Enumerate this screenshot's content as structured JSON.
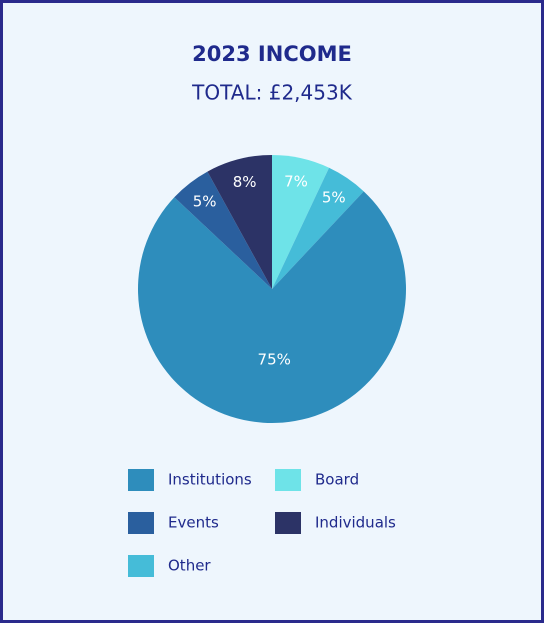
{
  "chart_data": {
    "type": "pie",
    "title": "2023 INCOME",
    "subtitle": "TOTAL: £2,453K",
    "categories": [
      "Board",
      "Other",
      "Institutions",
      "Events",
      "Individuals"
    ],
    "values": [
      7,
      5,
      75,
      5,
      8
    ],
    "value_labels": [
      "7%",
      "5%",
      "75%",
      "5%",
      "8%"
    ],
    "colors": [
      "#6ee3e8",
      "#45bcd8",
      "#2e8dbc",
      "#2a5f9e",
      "#2c3366"
    ],
    "legend": "bottom"
  }
}
